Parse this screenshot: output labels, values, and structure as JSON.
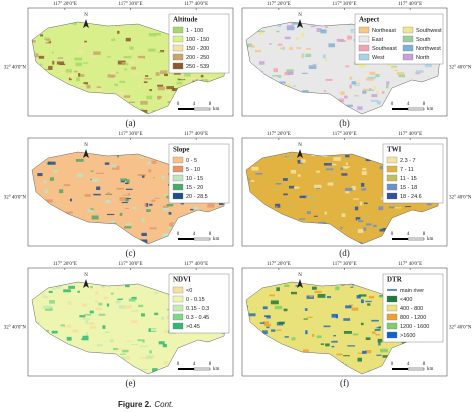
{
  "panels": [
    {
      "label": "(a)",
      "coords_top": [
        "117° 20'0\"E",
        "117° 30'0\"E",
        "117° 40'0\"E"
      ],
      "coords_side": [
        "32° 40'0\"N"
      ],
      "north": "N",
      "legend": {
        "title": "Altitude",
        "items": [
          {
            "label": "1 - 100",
            "color": "#a6d96a"
          },
          {
            "label": "100 - 150",
            "color": "#d9ef8b"
          },
          {
            "label": "150 - 200",
            "color": "#f4e3a3"
          },
          {
            "label": "200 - 250",
            "color": "#c9a46b"
          },
          {
            "label": "250 - 539",
            "color": "#8c5a2b"
          }
        ]
      },
      "scale": [
        "0",
        "4",
        "8"
      ],
      "scale_unit": "km"
    },
    {
      "label": "(b)",
      "coords_top": [
        "117° 20'0\"E",
        "117° 30'0\"E",
        "117° 40'0\"E"
      ],
      "coords_side": [
        "32° 40'0\"N"
      ],
      "north": "N",
      "legend": {
        "title": "Aspect",
        "items": [
          {
            "label": "Northeast",
            "color": "#f7c77e"
          },
          {
            "label": "East",
            "color": "#e8e8e8"
          },
          {
            "label": "Southeast",
            "color": "#f2a3b3"
          },
          {
            "label": "West",
            "color": "#a7d3e8"
          },
          {
            "label": "Southwest",
            "color": "#f0e68c"
          },
          {
            "label": "South",
            "color": "#9ccfa0"
          },
          {
            "label": "Northwest",
            "color": "#7fb2d6"
          },
          {
            "label": "North",
            "color": "#c8a2d8"
          }
        ]
      },
      "scale": [
        "0",
        "4",
        "8"
      ],
      "scale_unit": "km"
    },
    {
      "label": "(c)",
      "coords_top": [
        "117° 30'0\"E",
        "117° 40'0\"E"
      ],
      "coords_side": [
        "32° 40'0\"N"
      ],
      "north": "N",
      "legend": {
        "title": "Slope",
        "items": [
          {
            "label": "0 - 5",
            "color": "#f6c18a"
          },
          {
            "label": "5 - 10",
            "color": "#e8956a"
          },
          {
            "label": "10 - 15",
            "color": "#bfe3c3"
          },
          {
            "label": "15 - 20",
            "color": "#4fa86b"
          },
          {
            "label": "20 - 28.5",
            "color": "#1f4e8c"
          }
        ]
      },
      "scale": [
        "0",
        "4",
        "8"
      ],
      "scale_unit": "km"
    },
    {
      "label": "(d)",
      "coords_top": [
        "117° 20'0\"E",
        "117° 30'0\"E",
        "117° 40'0\"E"
      ],
      "coords_side": [
        "32° 40'0\"N"
      ],
      "north": "N",
      "legend": {
        "title": "TWI",
        "items": [
          {
            "label": "2.3 - 7",
            "color": "#f3e4a0"
          },
          {
            "label": "7 - 11",
            "color": "#e3b341"
          },
          {
            "label": "11 - 15",
            "color": "#c0c060"
          },
          {
            "label": "15 - 18",
            "color": "#6f8fc9"
          },
          {
            "label": "18 - 24.6",
            "color": "#2f4f9f"
          }
        ]
      },
      "scale": [
        "0",
        "4",
        "8"
      ],
      "scale_unit": "km"
    },
    {
      "label": "(e)",
      "coords_top": [
        "117° 20'0\"E",
        "117° 30'0\"E",
        "117° 40'0\"E"
      ],
      "coords_side": [
        "32° 40'0\"N"
      ],
      "north": "N",
      "legend": {
        "title": "NDVI",
        "items": [
          {
            "label": "<0",
            "color": "#f7dfa0"
          },
          {
            "label": "0 - 0.15",
            "color": "#eef5b0"
          },
          {
            "label": "0.15 - 0.3",
            "color": "#c7ebb0"
          },
          {
            "label": "0.3 - 0.45",
            "color": "#7fd88a"
          },
          {
            "label": ">0.45",
            "color": "#2eb872"
          }
        ]
      },
      "scale": [
        "0",
        "4",
        "8"
      ],
      "scale_unit": "km"
    },
    {
      "label": "(f)",
      "coords_top": [
        "117° 20'0\"E",
        "117° 30'0\"E",
        "117° 40'0\"E"
      ],
      "coords_side": [
        "32° 40'0\"N"
      ],
      "north": "N",
      "legend": {
        "title": "DTR",
        "items": [
          {
            "label": "main river",
            "color": "#2a6fb0"
          },
          {
            "label": "<400",
            "color": "#1e7a3c"
          },
          {
            "label": "400 - 800",
            "color": "#e9e27a"
          },
          {
            "label": "800 - 1200",
            "color": "#f0a030"
          },
          {
            "label": "1200 - 1600",
            "color": "#7bd06a"
          },
          {
            "label": ">1600",
            "color": "#1560d0"
          }
        ]
      },
      "scale": [
        "0",
        "4",
        "8"
      ],
      "scale_unit": "km"
    }
  ],
  "caption": {
    "label": "Figure 2.",
    "text": "Cont."
  }
}
